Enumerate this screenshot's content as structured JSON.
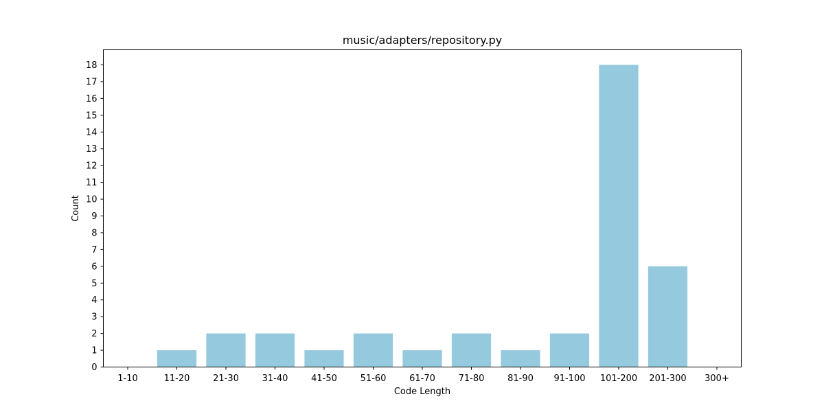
{
  "chart_data": {
    "type": "bar",
    "title": "music/adapters/repository.py",
    "xlabel": "Code Length",
    "ylabel": "Count",
    "categories": [
      "1-10",
      "11-20",
      "21-30",
      "31-40",
      "41-50",
      "51-60",
      "61-70",
      "71-80",
      "81-90",
      "91-100",
      "101-200",
      "201-300",
      "300+"
    ],
    "values": [
      0,
      1,
      2,
      2,
      1,
      2,
      1,
      2,
      1,
      2,
      18,
      6,
      0
    ],
    "ylim": [
      0,
      18.9
    ],
    "yticks": [
      0,
      1,
      2,
      3,
      4,
      5,
      6,
      7,
      8,
      9,
      10,
      11,
      12,
      13,
      14,
      15,
      16,
      17,
      18
    ],
    "bar_color": "#95c9dd",
    "grid": false,
    "legend": "none"
  }
}
